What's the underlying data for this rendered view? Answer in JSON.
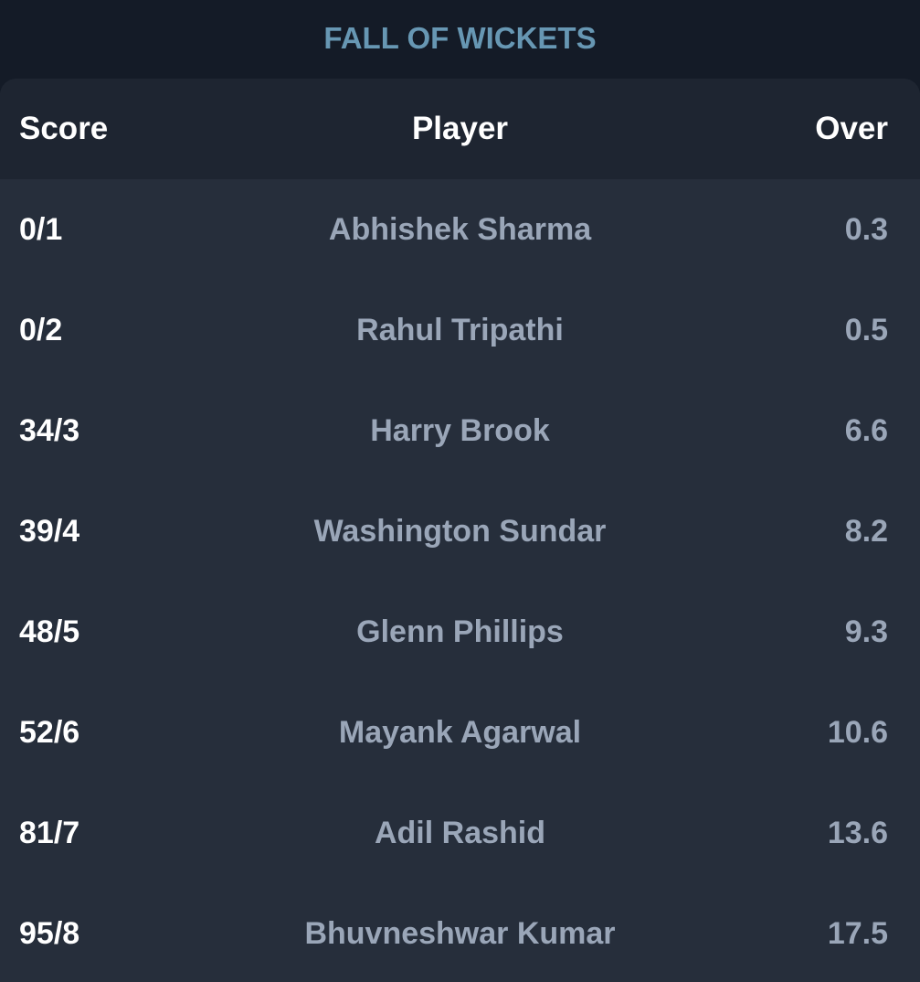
{
  "header": {
    "title": "FALL OF WICKETS"
  },
  "table": {
    "columns": {
      "score": "Score",
      "player": "Player",
      "over": "Over"
    },
    "rows": [
      {
        "score": "0/1",
        "player": "Abhishek Sharma",
        "over": "0.3"
      },
      {
        "score": "0/2",
        "player": "Rahul Tripathi",
        "over": "0.5"
      },
      {
        "score": "34/3",
        "player": "Harry Brook",
        "over": "6.6"
      },
      {
        "score": "39/4",
        "player": "Washington Sundar",
        "over": "8.2"
      },
      {
        "score": "48/5",
        "player": "Glenn Phillips",
        "over": "9.3"
      },
      {
        "score": "52/6",
        "player": "Mayank Agarwal",
        "over": "10.6"
      },
      {
        "score": "81/7",
        "player": "Adil Rashid",
        "over": "13.6"
      },
      {
        "score": "95/8",
        "player": "Bhuvneshwar Kumar",
        "over": "17.5"
      }
    ]
  },
  "colors": {
    "page_background": "#141b27",
    "card_background": "#262e3b",
    "header_row_background": "#1e2531",
    "title_color": "#6797b3",
    "primary_text": "#ffffff",
    "secondary_text": "#9aa6b8"
  }
}
